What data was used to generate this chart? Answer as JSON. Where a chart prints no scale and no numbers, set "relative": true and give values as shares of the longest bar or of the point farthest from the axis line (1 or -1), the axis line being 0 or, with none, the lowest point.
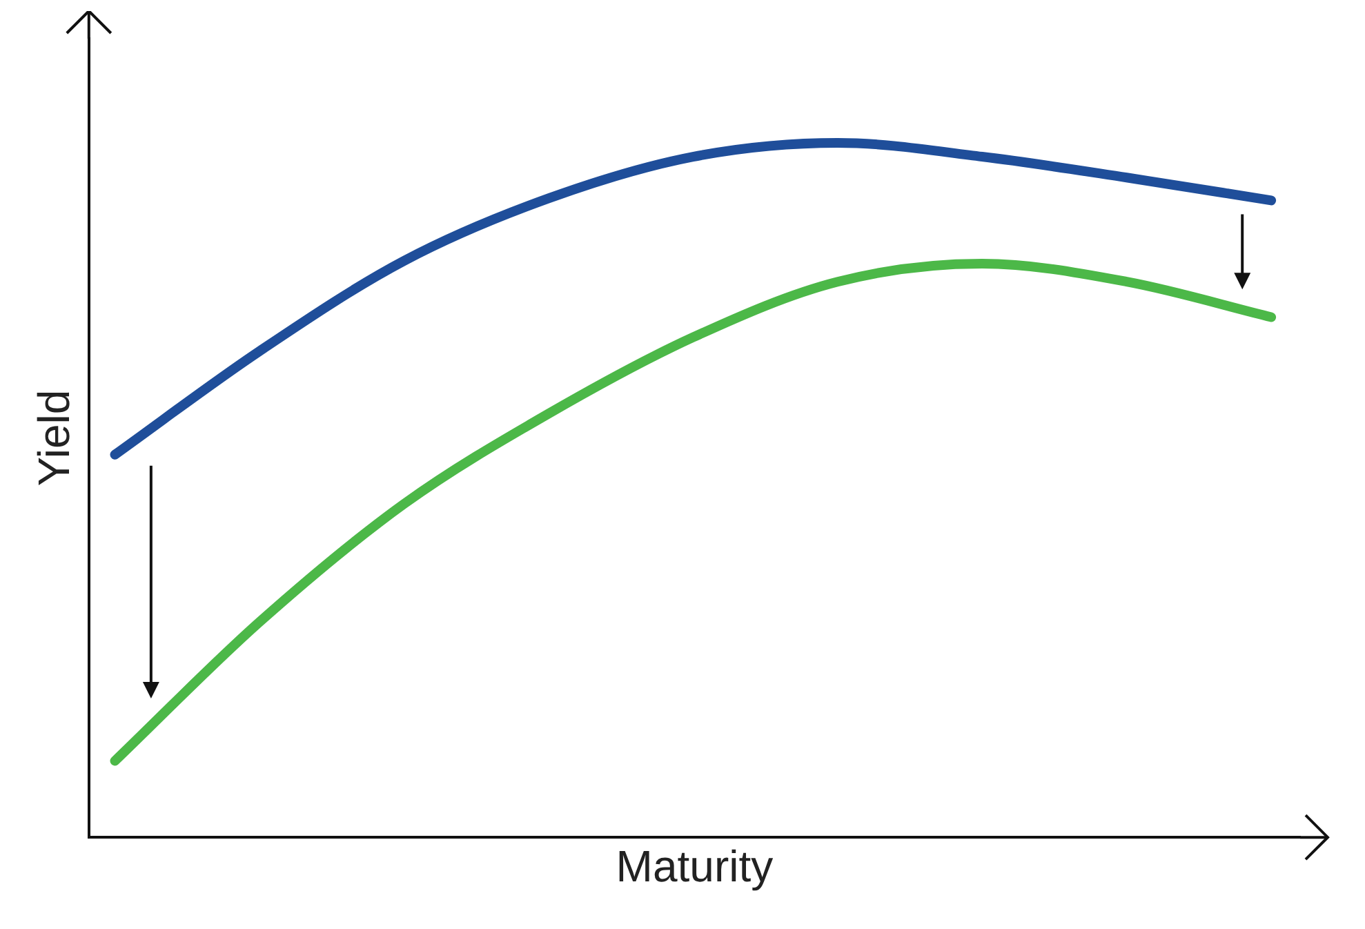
{
  "chart_data": {
    "type": "line",
    "relative": true,
    "xlabel": "Maturity",
    "ylabel": "Yield",
    "categories": [
      null,
      null,
      null,
      null,
      null,
      null,
      null,
      null,
      null
    ],
    "series": [
      {
        "color": "#1f4e9a",
        "values": [
          0.551,
          0.7,
          0.83,
          0.92,
          0.98,
          1.0,
          0.98,
          0.95,
          0.917
        ]
      },
      {
        "color": "#4cb848",
        "values": [
          0.11,
          0.31,
          0.48,
          0.61,
          0.72,
          0.8,
          0.826,
          0.8,
          0.749
        ]
      }
    ],
    "grid": false,
    "legend": false,
    "marker": "none",
    "line_style": "solid"
  }
}
